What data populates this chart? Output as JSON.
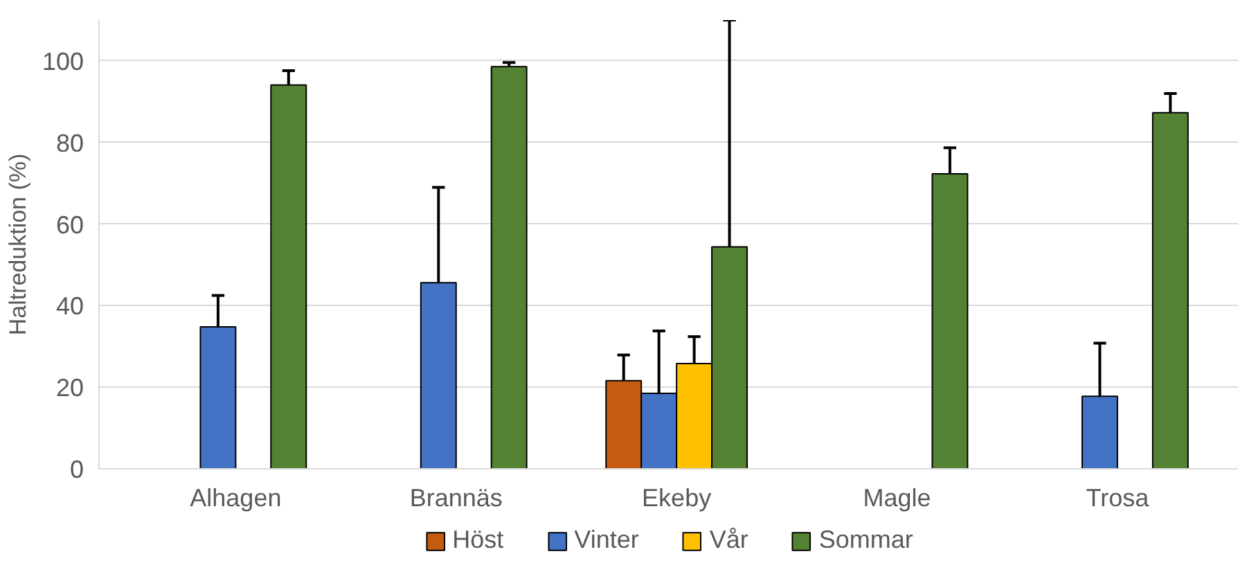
{
  "chart_data": {
    "type": "bar",
    "ylabel": "Haltreduktion (%)",
    "categories": [
      "Alhagen",
      "Brannäs",
      "Ekeby",
      "Magle",
      "Trosa"
    ],
    "series": [
      {
        "name": "Höst",
        "color": "#c55a11",
        "values": [
          null,
          null,
          21.6,
          null,
          null
        ],
        "errors": [
          null,
          null,
          [
            21.6,
            27.9
          ],
          null,
          null
        ]
      },
      {
        "name": "Vinter",
        "color": "#4472c4",
        "values": [
          34.8,
          45.6,
          18.5,
          null,
          17.8
        ],
        "errors": [
          [
            34.8,
            42.5
          ],
          [
            45.6,
            69.0
          ],
          [
            18.5,
            33.8
          ],
          null,
          [
            17.8,
            30.8
          ]
        ]
      },
      {
        "name": "Vår",
        "color": "#ffc000",
        "values": [
          null,
          null,
          25.8,
          null,
          null
        ],
        "errors": [
          null,
          null,
          [
            25.8,
            32.4
          ],
          null,
          null
        ]
      },
      {
        "name": "Sommar",
        "color": "#548235",
        "values": [
          94.1,
          98.6,
          54.4,
          72.3,
          87.3
        ],
        "errors": [
          [
            94.1,
            97.6
          ],
          [
            98.6,
            99.6
          ],
          [
            54.4,
            110
          ],
          [
            72.3,
            78.7
          ],
          [
            87.3,
            92.0
          ]
        ]
      }
    ],
    "ylim": [
      0,
      110
    ],
    "yticks": [
      0,
      20,
      40,
      60,
      80,
      100
    ],
    "grid": "y",
    "legend": "bottom"
  }
}
